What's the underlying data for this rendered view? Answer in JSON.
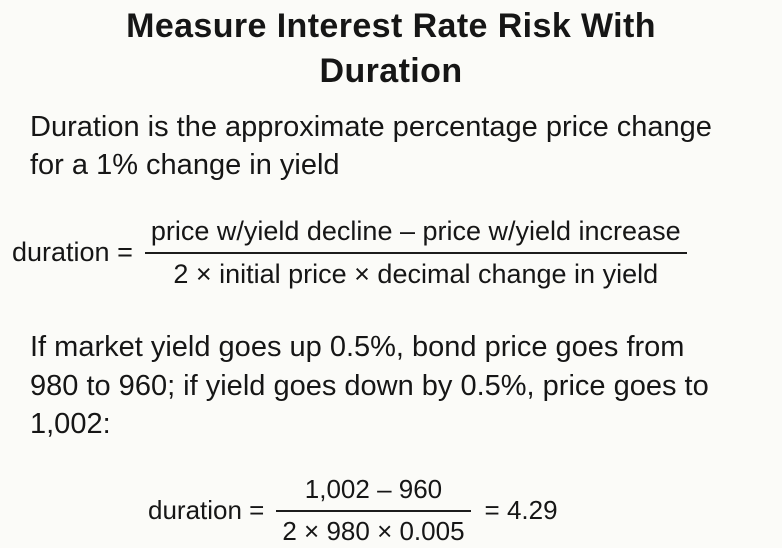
{
  "slide": {
    "title": "Measure Interest Rate Risk With Duration",
    "intro": "Duration is the approximate percentage price change for a 1% change in yield",
    "formula_general": {
      "lhs": "duration =",
      "numerator": "price w/yield decline – price w/yield increase",
      "denominator": "2 × initial price × decimal change in yield"
    },
    "example": "If market yield goes up 0.5%, bond price goes from 980 to 960; if yield goes down by 0.5%, price goes to 1,002:",
    "formula_example": {
      "lhs": "duration =",
      "numerator": "1,002 – 960",
      "denominator": "2 × 980 × 0.005",
      "result": "= 4.29"
    },
    "colors": {
      "text": "#161616",
      "background": "#fbfbf8"
    }
  }
}
